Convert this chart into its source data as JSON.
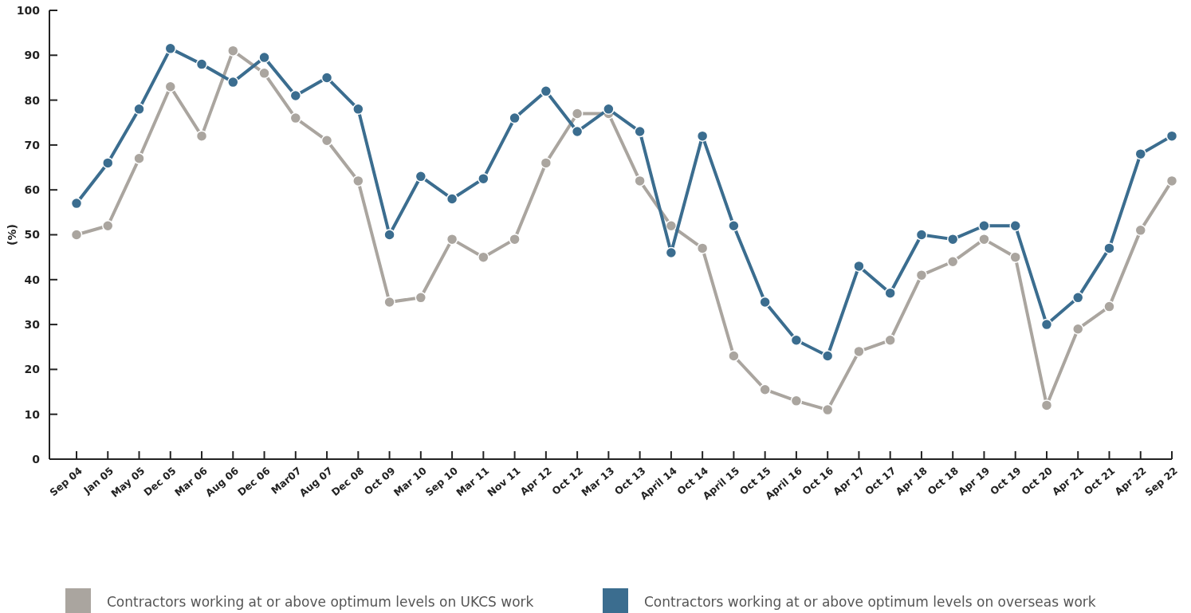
{
  "chart_data": {
    "type": "line",
    "ylabel": "(%)",
    "categories": [
      "Sep 04",
      "Jan 05",
      "May 05",
      "Dec 05",
      "Mar 06",
      "Aug 06",
      "Dec 06",
      "Mar07",
      "Aug 07",
      "Dec 08",
      "Oct 09",
      "Mar 10",
      "Sep 10",
      "Mar 11",
      "Nov 11",
      "Apr 12",
      "Oct 12",
      "Mar 13",
      "Oct 13",
      "April 14",
      "Oct 14",
      "April 15",
      "Oct 15",
      "April 16",
      "Oct 16",
      "Apr 17",
      "Oct 17",
      "Apr 18",
      "Oct 18",
      "Apr 19",
      "Oct 19",
      "Oct 20",
      "Apr 21",
      "Oct 21",
      "Apr 22",
      "Sep 22"
    ],
    "series": [
      {
        "name": "Contractors working at or above optimum levels on UKCS work",
        "color": "#aaa59f",
        "values": [
          50,
          52,
          67,
          83,
          72,
          91,
          86,
          76,
          71,
          62,
          35,
          36,
          49,
          45,
          49,
          66,
          77,
          77,
          62,
          52,
          47,
          23,
          15.5,
          13,
          11,
          24,
          26.5,
          41,
          44,
          49,
          45,
          12,
          29,
          34,
          51,
          62
        ]
      },
      {
        "name": "Contractors working at or above optimum levels on overseas work",
        "color": "#3b6d8f",
        "values": [
          57,
          66,
          78,
          91.5,
          88,
          84,
          89.5,
          81,
          85,
          78,
          50,
          63,
          58,
          62.5,
          76,
          82,
          73,
          78,
          73,
          46,
          72,
          52,
          35,
          26.5,
          23,
          43,
          37,
          50,
          49,
          52,
          52,
          30,
          36,
          47,
          68,
          72
        ]
      }
    ],
    "ylim": [
      0,
      100
    ],
    "yticks": [
      0,
      10,
      20,
      30,
      40,
      50,
      60,
      70,
      80,
      90,
      100
    ],
    "grid": false,
    "legend": "bottom",
    "marker": "circle",
    "line_style": "solid"
  }
}
